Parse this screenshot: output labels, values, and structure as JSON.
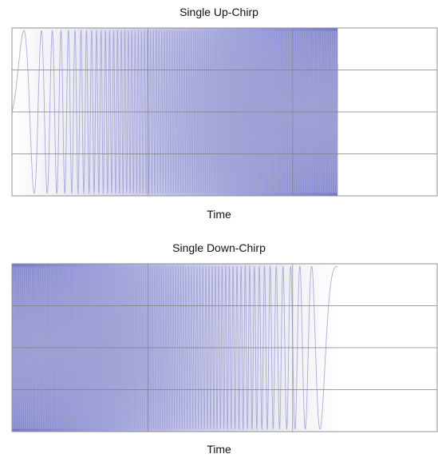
{
  "chart_data": [
    {
      "type": "line",
      "title": "Single Up-Chirp",
      "xlabel": "Time",
      "ylabel": "",
      "sweep": "up",
      "chirp_start": 0.0,
      "chirp_end": 0.766,
      "xlim": [
        0,
        1
      ],
      "ylim": [
        -1,
        1
      ],
      "grid": true,
      "colors": {
        "low_freq": "#c7c7dc",
        "high_freq": "#5b61c6",
        "grid": "#808080"
      }
    },
    {
      "type": "line",
      "title": "Single Down-Chirp",
      "xlabel": "Time",
      "ylabel": "",
      "sweep": "down",
      "chirp_start": 0.0,
      "chirp_end": 0.766,
      "xlim": [
        0,
        1
      ],
      "ylim": [
        -1,
        1
      ],
      "grid": true,
      "colors": {
        "low_freq": "#c7c7dc",
        "high_freq": "#5b61c6",
        "grid": "#808080"
      }
    }
  ]
}
